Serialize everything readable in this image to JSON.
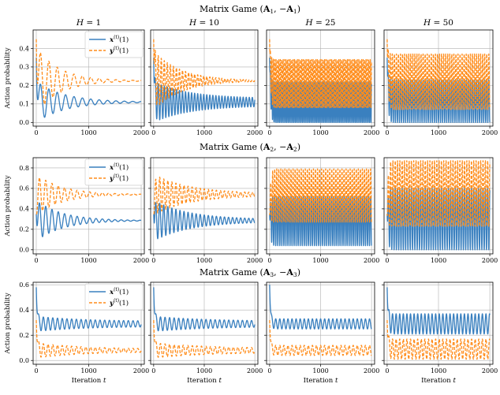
{
  "figure": {
    "row_titles": [
      {
        "prefix": "Matrix Game (",
        "a": "A",
        "a_sub": "1",
        "sep": ", −",
        "b": "A",
        "b_sub": "1",
        "suffix": ")"
      },
      {
        "prefix": "Matrix Game (",
        "a": "A",
        "a_sub": "2",
        "sep": ", −",
        "b": "A",
        "b_sub": "2",
        "suffix": ")"
      },
      {
        "prefix": "Matrix Game (",
        "a": "A",
        "a_sub": "3",
        "sep": ", −",
        "b": "A",
        "b_sub": "3",
        "suffix": ")"
      }
    ],
    "column_titles": [
      "H = 1",
      "H = 10",
      "H = 25",
      "H = 50"
    ],
    "ylabel": "Action probability",
    "xlabel": "Iteration t",
    "legend": [
      {
        "var": "x",
        "sup": "(t)",
        "arg": "(1)",
        "color": "#1f77b4",
        "dash": "solid"
      },
      {
        "var": "y",
        "sup": "(t)",
        "arg": "(1)",
        "color": "#ff7f0e",
        "dash": "dashed"
      }
    ],
    "colors": {
      "x": "#3a80bf",
      "y": "#ff8c1a"
    }
  },
  "chart_data": [
    {
      "type": "line",
      "title": "Matrix Game (A1, -A1)",
      "xlabel": "Iteration t",
      "ylabel": "Action probability",
      "xlim": [
        -60,
        2060
      ],
      "xticks": [
        0,
        1000,
        2000
      ],
      "ylim": [
        -0.02,
        0.5
      ],
      "yticks": [
        0.0,
        0.1,
        0.2,
        0.3,
        0.4
      ],
      "ytick_labels": [
        "0.0",
        "0.1",
        "0.2",
        "0.3",
        "0.4"
      ],
      "grid": true,
      "legend": "top-right (first panel)",
      "panels": [
        {
          "title": "H = 1",
          "series": [
            {
              "name": "x(t)(1)",
              "start": 0.35,
              "mean": 0.11,
              "amp": 0.11,
              "period": 160,
              "decay": 550,
              "floor_amp": 0.0
            },
            {
              "name": "y(t)(1)",
              "start": 0.45,
              "mean": 0.225,
              "amp": 0.18,
              "period": 160,
              "decay": 450,
              "floor_amp": 0.0
            }
          ]
        },
        {
          "title": "H = 10",
          "series": [
            {
              "name": "x(t)(1)",
              "start": 0.35,
              "mean": 0.11,
              "amp": 0.11,
              "period": 60,
              "decay": 700,
              "floor_amp": 0.02
            },
            {
              "name": "y(t)(1)",
              "start": 0.45,
              "mean": 0.225,
              "amp": 0.16,
              "period": 60,
              "decay": 550,
              "floor_amp": 0.0
            }
          ]
        },
        {
          "title": "H = 25",
          "series": [
            {
              "name": "x(t)(1)",
              "start": 0.35,
              "mean": 0.11,
              "amp": 0.11,
              "period": 28,
              "decay": 0,
              "floor_amp": 0.11
            },
            {
              "name": "y(t)(1)",
              "start": 0.45,
              "mean": 0.21,
              "amp": 0.14,
              "period": 28,
              "decay": 0,
              "floor_amp": 0.13
            }
          ]
        },
        {
          "title": "H = 50",
          "series": [
            {
              "name": "x(t)(1)",
              "start": 0.35,
              "mean": 0.115,
              "amp": 0.115,
              "period": 40,
              "decay": 0,
              "floor_amp": 0.115
            },
            {
              "name": "y(t)(1)",
              "start": 0.45,
              "mean": 0.22,
              "amp": 0.15,
              "period": 40,
              "decay": 0,
              "floor_amp": 0.15
            }
          ]
        }
      ]
    },
    {
      "type": "line",
      "title": "Matrix Game (A2, -A2)",
      "xlabel": "Iteration t",
      "ylabel": "Action probability",
      "xlim": [
        -60,
        2060
      ],
      "xticks": [
        0,
        1000,
        2000
      ],
      "ylim": [
        -0.04,
        0.9
      ],
      "yticks": [
        0.0,
        0.2,
        0.4,
        0.6,
        0.8
      ],
      "ytick_labels": [
        "0.0",
        "0.2",
        "0.4",
        "0.6",
        "0.8"
      ],
      "grid": true,
      "legend": "top-right (first panel)",
      "panels": [
        {
          "title": "H = 1",
          "series": [
            {
              "name": "x(t)(1)",
              "start": 0.35,
              "mean": 0.285,
              "amp": 0.2,
              "period": 120,
              "decay": 500,
              "floor_amp": 0.0
            },
            {
              "name": "y(t)(1)",
              "start": 0.35,
              "mean": 0.54,
              "amp": 0.2,
              "period": 120,
              "decay": 500,
              "floor_amp": 0.0
            }
          ]
        },
        {
          "title": "H = 10",
          "series": [
            {
              "name": "x(t)(1)",
              "start": 0.35,
              "mean": 0.285,
              "amp": 0.2,
              "period": 80,
              "decay": 700,
              "floor_amp": 0.01
            },
            {
              "name": "y(t)(1)",
              "start": 0.35,
              "mean": 0.54,
              "amp": 0.2,
              "period": 80,
              "decay": 700,
              "floor_amp": 0.01
            }
          ]
        },
        {
          "title": "H = 25",
          "series": [
            {
              "name": "x(t)(1)",
              "start": 0.35,
              "mean": 0.28,
              "amp": 0.24,
              "period": 40,
              "decay": 0,
              "floor_amp": 0.24
            },
            {
              "name": "y(t)(1)",
              "start": 0.35,
              "mean": 0.53,
              "amp": 0.26,
              "period": 40,
              "decay": 0,
              "floor_amp": 0.26
            }
          ]
        },
        {
          "title": "H = 50",
          "series": [
            {
              "name": "x(t)(1)",
              "start": 0.35,
              "mean": 0.3,
              "amp": 0.3,
              "period": 45,
              "decay": 0,
              "floor_amp": 0.3
            },
            {
              "name": "y(t)(1)",
              "start": 0.35,
              "mean": 0.55,
              "amp": 0.32,
              "period": 45,
              "decay": 0,
              "floor_amp": 0.32
            }
          ]
        }
      ]
    },
    {
      "type": "line",
      "title": "Matrix Game (A3, -A3)",
      "xlabel": "Iteration t",
      "ylabel": "Action probability",
      "xlim": [
        -60,
        2060
      ],
      "xticks": [
        0,
        1000,
        2000
      ],
      "ylim": [
        -0.03,
        0.62
      ],
      "yticks": [
        0.0,
        0.2,
        0.4,
        0.6
      ],
      "ytick_labels": [
        "0.0",
        "0.2",
        "0.4",
        "0.6"
      ],
      "grid": true,
      "legend": "top-right (first panel)",
      "panels": [
        {
          "title": "H = 1",
          "series": [
            {
              "name": "x(t)(1)",
              "start": 0.58,
              "mean": 0.29,
              "amp": 0.06,
              "period": 90,
              "decay": 900,
              "floor_amp": 0.02
            },
            {
              "name": "y(t)(1)",
              "start": 0.32,
              "mean": 0.08,
              "amp": 0.06,
              "period": 90,
              "decay": 900,
              "floor_amp": 0.01
            }
          ]
        },
        {
          "title": "H = 10",
          "series": [
            {
              "name": "x(t)(1)",
              "start": 0.58,
              "mean": 0.29,
              "amp": 0.06,
              "period": 90,
              "decay": 1100,
              "floor_amp": 0.02
            },
            {
              "name": "y(t)(1)",
              "start": 0.32,
              "mean": 0.08,
              "amp": 0.06,
              "period": 90,
              "decay": 1100,
              "floor_amp": 0.015
            }
          ]
        },
        {
          "title": "H = 25",
          "series": [
            {
              "name": "x(t)(1)",
              "start": 0.6,
              "mean": 0.29,
              "amp": 0.05,
              "period": 80,
              "decay": 0,
              "floor_amp": 0.04
            },
            {
              "name": "y(t)(1)",
              "start": 0.32,
              "mean": 0.08,
              "amp": 0.05,
              "period": 80,
              "decay": 0,
              "floor_amp": 0.04
            }
          ]
        },
        {
          "title": "H = 50",
          "series": [
            {
              "name": "x(t)(1)",
              "start": 0.58,
              "mean": 0.29,
              "amp": 0.08,
              "period": 70,
              "decay": 0,
              "floor_amp": 0.08
            },
            {
              "name": "y(t)(1)",
              "start": 0.32,
              "mean": 0.09,
              "amp": 0.08,
              "period": 70,
              "decay": 0,
              "floor_amp": 0.08
            }
          ]
        }
      ]
    }
  ]
}
